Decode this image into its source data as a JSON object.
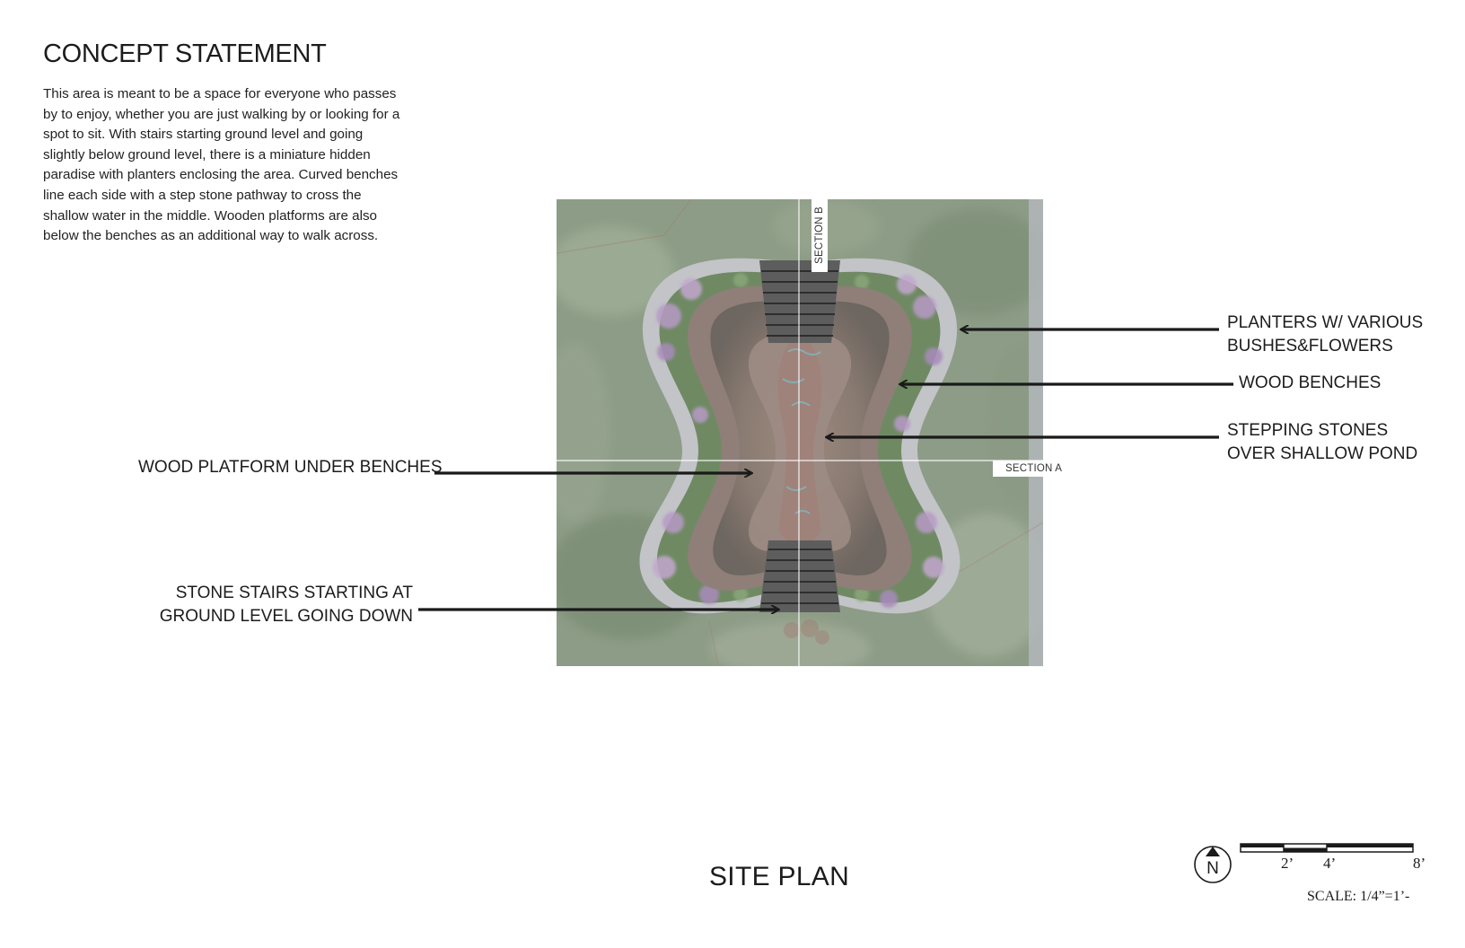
{
  "concept": {
    "title": "CONCEPT STATEMENT",
    "body": "This area is meant to be a space for everyone who passes by to enjoy, whether you are just walking by or looking for a spot to sit. With stairs starting ground level and going slightly below ground level, there is a miniature hidden paradise with planters enclosing the area. Curved benches line each side with a step stone pathway to cross the shallow water in the middle. Wooden platforms are also below the benches as an additional way to walk across."
  },
  "plan": {
    "section_b": "SECTION B",
    "section_a": "SECTION A"
  },
  "callouts": {
    "planters": [
      "PLANTERS W/ VARIOUS",
      "BUSHES&FLOWERS"
    ],
    "benches": "WOOD BENCHES",
    "stones": [
      "STEPPING STONES",
      "OVER SHALLOW POND"
    ],
    "platform": "WOOD PLATFORM UNDER BENCHES",
    "stairs": [
      "STONE STAIRS STARTING AT",
      "GROUND LEVEL GOING DOWN"
    ]
  },
  "title": "SITE PLAN",
  "north": "N",
  "scale": {
    "ticks": [
      "2’",
      "4’",
      "8’"
    ],
    "text": "SCALE: 1/4”=1’-"
  },
  "colors": {
    "grass": "#8a9a82",
    "planter_rim": "#b8bbbf",
    "planter_fill": "#6f8a63",
    "flower": "#b89bc6",
    "bench": "#9a8276",
    "pond": "#8e8178",
    "water": "#7fb9c2",
    "stair": "#4a4a4a"
  }
}
